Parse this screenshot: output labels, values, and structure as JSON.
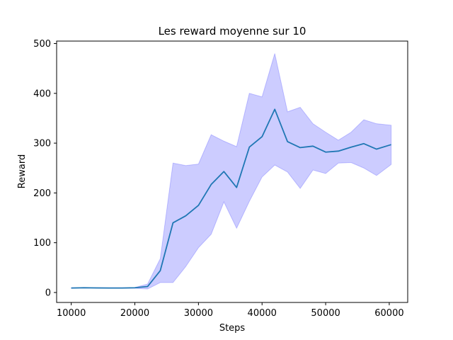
{
  "chart_data": {
    "type": "line",
    "title": "Les reward moyenne sur 10",
    "xlabel": "Steps",
    "ylabel": "Reward",
    "xlim": [
      7700,
      62900
    ],
    "ylim": [
      -20,
      505
    ],
    "xticks": [
      10000,
      20000,
      30000,
      40000,
      50000,
      60000
    ],
    "yticks": [
      0,
      100,
      200,
      300,
      400,
      500
    ],
    "grid": false,
    "line_color": "#1f77b4",
    "band_color": "#0000ff",
    "x": [
      10000,
      12000,
      14000,
      16000,
      18000,
      20000,
      22000,
      24000,
      26000,
      28000,
      30000,
      32000,
      34000,
      36000,
      38000,
      40000,
      42000,
      44000,
      46000,
      48000,
      50000,
      52000,
      54000,
      56000,
      58000,
      60300
    ],
    "series": [
      {
        "values": [
          9,
          9.5,
          9.2,
          9,
          9,
          9.5,
          12,
          44,
          140,
          154,
          175,
          217,
          243,
          211,
          292,
          313,
          368,
          303,
          291,
          294,
          282,
          284,
          292,
          299,
          288,
          297
        ],
        "upper": [
          9.5,
          10,
          9.8,
          9.5,
          9.5,
          10,
          17,
          68,
          260,
          255,
          258,
          317,
          304,
          293,
          400,
          393,
          480,
          363,
          372,
          339,
          322,
          306,
          322,
          347,
          339,
          336
        ],
        "lower": [
          8.5,
          9,
          8.8,
          8.5,
          8.5,
          8.5,
          7,
          20,
          20,
          52,
          90,
          117,
          182,
          129,
          183,
          232,
          256,
          242,
          209,
          246,
          239,
          260,
          261,
          250,
          235,
          257
        ]
      }
    ]
  }
}
